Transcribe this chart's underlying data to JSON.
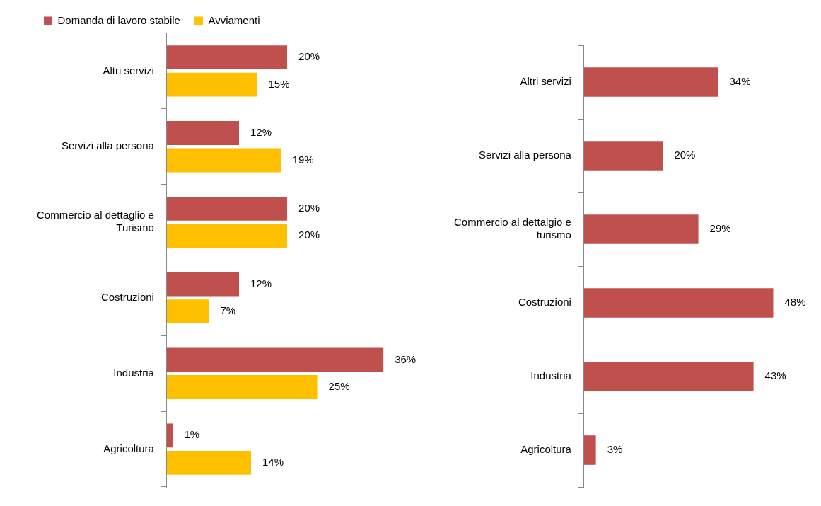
{
  "chart_data": [
    {
      "type": "bar",
      "orientation": "horizontal",
      "legend": "top left",
      "tick_labels": "y",
      "categories": [
        "Altri servizi",
        "Servizi alla persona",
        "Commercio al dettaglio e Turismo",
        "Costruzioni",
        "Industria",
        "Agricoltura"
      ],
      "series": [
        {
          "name": "Domanda di lavoro stabile",
          "color": "#c0504d",
          "values": [
            20,
            12,
            20,
            12,
            36,
            1
          ],
          "value_labels": [
            "20%",
            "12%",
            "20%",
            "12%",
            "36%",
            "1%"
          ]
        },
        {
          "name": "Avviamenti",
          "color": "#ffc000",
          "values": [
            15,
            19,
            20,
            7,
            25,
            14
          ],
          "value_labels": [
            "15%",
            "19%",
            "20%",
            "7%",
            "25%",
            "14%"
          ]
        }
      ]
    },
    {
      "type": "bar",
      "orientation": "horizontal",
      "tick_labels": "y",
      "categories": [
        "Altri servizi",
        "Servizi alla persona",
        "Commercio al dettalgio e turismo",
        "Costruzioni",
        "Industria",
        "Agricoltura"
      ],
      "series": [
        {
          "color": "#c0504d",
          "values": [
            34,
            20,
            29,
            48,
            43,
            3
          ],
          "value_labels": [
            "34%",
            "20%",
            "29%",
            "48%",
            "43%",
            "3%"
          ]
        }
      ]
    }
  ]
}
